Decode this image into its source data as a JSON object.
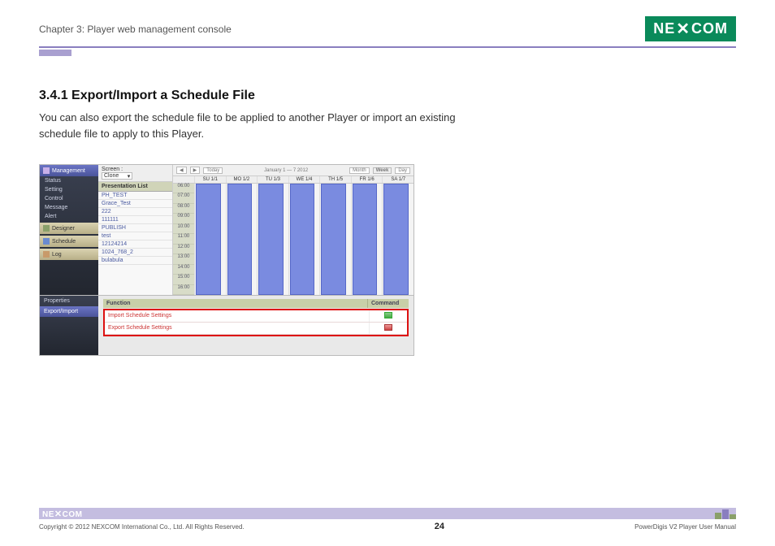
{
  "header": {
    "chapter": "Chapter 3: Player web management console",
    "logo_text": "NEXCOM"
  },
  "section": {
    "heading": "3.4.1 Export/Import a Schedule File",
    "body": "You can also export the schedule file to be applied to another Player or import an existing schedule file to apply to this Player."
  },
  "screenshot": {
    "sidebar": {
      "management_label": "Management",
      "items": [
        "Status",
        "Setting",
        "Control",
        "Message",
        "Alert"
      ],
      "designer_label": "Designer",
      "schedule_label": "Schedule",
      "log_label": "Log"
    },
    "list": {
      "screen_label": "Screen :",
      "screen_value": "Clone",
      "list_header": "Presentation List",
      "rows": [
        "PH_TEST",
        "Grace_Test",
        "222",
        "111111",
        "PUBLISH",
        "test",
        "12124214",
        "1024_768_2",
        "bulabula"
      ]
    },
    "calendar": {
      "nav_today": "Today",
      "range": "January 1 — 7 2012",
      "view_month": "Month",
      "view_week": "Week",
      "view_day": "Day",
      "days": [
        "SU 1/1",
        "MO 1/2",
        "TU 1/3",
        "WE 1/4",
        "TH 1/5",
        "FR 1/6",
        "SA 1/7"
      ],
      "times": [
        "06:00",
        "07:00",
        "08:00",
        "09:00",
        "10:00",
        "11:00",
        "12:00",
        "13:00",
        "14:00",
        "15:00",
        "16:00"
      ],
      "event_color": "#7a8be0"
    },
    "bottom": {
      "tab_properties": "Properties",
      "tab_export": "Export/Import",
      "col_function": "Function",
      "col_command": "Command",
      "row_import": "Import Schedule Settings",
      "row_export": "Export Schedule Settings"
    }
  },
  "footer": {
    "logo": "NEXCOM",
    "copyright": "Copyright © 2012 NEXCOM International Co., Ltd. All Rights Reserved.",
    "page_number": "24",
    "manual": "PowerDigis V2 Player User Manual"
  },
  "colors": {
    "accent_purple": "#8a7ebf",
    "logo_green": "#0a8a5a",
    "red_highlight": "#d11"
  }
}
